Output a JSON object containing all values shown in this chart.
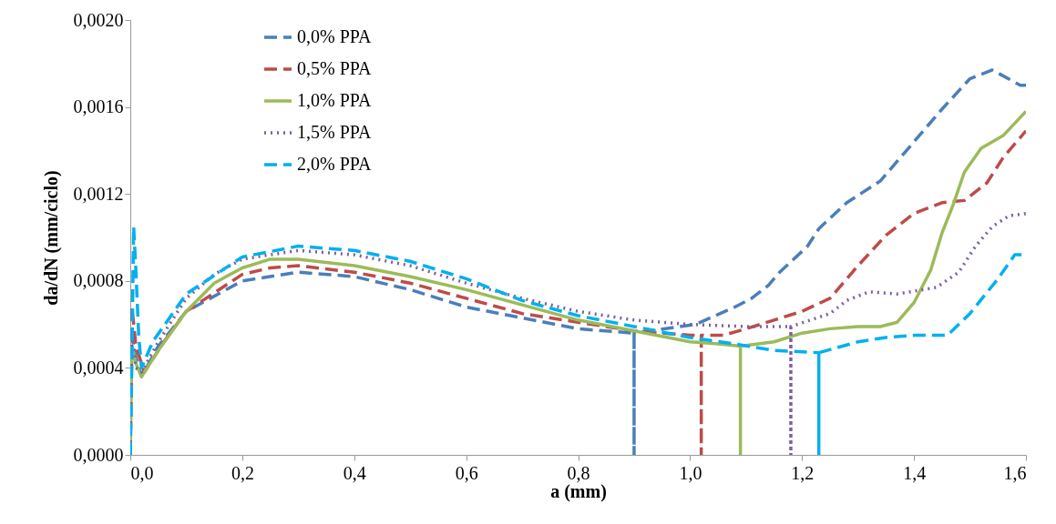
{
  "chart_data": {
    "type": "line",
    "xlabel": "a (mm)",
    "ylabel": "da/dN (mm/ciclo)",
    "xlim": [
      0,
      1.6
    ],
    "ylim": [
      0,
      0.002
    ],
    "xticks": [
      {
        "value": 0,
        "label": "0,0"
      },
      {
        "value": 0.2,
        "label": "0,2"
      },
      {
        "value": 0.4,
        "label": "0,4"
      },
      {
        "value": 0.6,
        "label": "0,6"
      },
      {
        "value": 0.8,
        "label": "0,8"
      },
      {
        "value": 1.0,
        "label": "1,0"
      },
      {
        "value": 1.2,
        "label": "1,2"
      },
      {
        "value": 1.4,
        "label": "1,4"
      },
      {
        "value": 1.6,
        "label": "1,6"
      }
    ],
    "yticks": [
      {
        "value": 0,
        "label": "0,0000"
      },
      {
        "value": 0.0004,
        "label": "0,0004"
      },
      {
        "value": 0.0008,
        "label": "0,0008"
      },
      {
        "value": 0.0012,
        "label": "0,0012"
      },
      {
        "value": 0.0016,
        "label": "0,0016"
      },
      {
        "value": 0.002,
        "label": "0,0020"
      }
    ],
    "legend": "top left",
    "marker": "none",
    "series": [
      {
        "name": "0,0% PPA",
        "color": "#4a7ebb",
        "line_style": "dashed",
        "x": [
          0,
          0.002,
          0.01,
          0.02,
          0.05,
          0.1,
          0.2,
          0.3,
          0.4,
          0.5,
          0.6,
          0.7,
          0.8,
          0.9,
          0.9,
          0.9,
          1.01,
          1.08,
          1.11,
          1.14,
          1.16,
          1.21,
          1.23,
          1.28,
          1.34,
          1.41,
          1.45,
          1.5,
          1.54,
          1.59,
          1.6
        ],
        "values": [
          0,
          0.00055,
          0.00045,
          0.00036,
          0.0005,
          0.00066,
          0.0008,
          0.00084,
          0.00082,
          0.00076,
          0.00068,
          0.00063,
          0.00058,
          0.00056,
          0,
          0.00056,
          0.0006,
          0.00068,
          0.00072,
          0.00078,
          0.00084,
          0.00096,
          0.00104,
          0.00116,
          0.00126,
          0.00147,
          0.00159,
          0.00173,
          0.00177,
          0.0017,
          0.0017
        ]
      },
      {
        "name": "0,5% PPA",
        "color": "#be4b48",
        "line_style": "dashed",
        "x": [
          0,
          0.003,
          0.01,
          0.025,
          0.06,
          0.1,
          0.2,
          0.25,
          0.3,
          0.4,
          0.5,
          0.6,
          0.7,
          0.8,
          0.9,
          1.0,
          1.02,
          1.02,
          1.02,
          1.06,
          1.1,
          1.15,
          1.2,
          1.25,
          1.3,
          1.35,
          1.4,
          1.45,
          1.49,
          1.53,
          1.56,
          1.6
        ],
        "values": [
          0,
          0.00068,
          0.0005,
          0.00038,
          0.00052,
          0.00066,
          0.00083,
          0.00086,
          0.00087,
          0.00084,
          0.00079,
          0.00072,
          0.00065,
          0.00061,
          0.00057,
          0.00055,
          0.00055,
          0,
          0.00055,
          0.00055,
          0.00058,
          0.00062,
          0.00066,
          0.00072,
          0.00087,
          0.00101,
          0.00111,
          0.00116,
          0.00117,
          0.00125,
          0.00137,
          0.00149
        ]
      },
      {
        "name": "1,0% PPA",
        "color": "#9bbb59",
        "line_style": "solid",
        "x": [
          0,
          0.003,
          0.01,
          0.02,
          0.05,
          0.1,
          0.15,
          0.2,
          0.25,
          0.3,
          0.4,
          0.5,
          0.6,
          0.7,
          0.8,
          0.9,
          1.0,
          1.05,
          1.09,
          1.09,
          1.09,
          1.15,
          1.2,
          1.25,
          1.3,
          1.34,
          1.37,
          1.4,
          1.43,
          1.45,
          1.47,
          1.49,
          1.52,
          1.56,
          1.6
        ],
        "values": [
          0,
          0.0005,
          0.00042,
          0.00036,
          0.00048,
          0.00066,
          0.00079,
          0.00086,
          0.0009,
          0.0009,
          0.00087,
          0.00082,
          0.00076,
          0.00069,
          0.00062,
          0.00057,
          0.00052,
          0.00051,
          0.0005,
          0,
          0.0005,
          0.00052,
          0.00056,
          0.00058,
          0.00059,
          0.00059,
          0.00061,
          0.0007,
          0.00085,
          0.00102,
          0.00115,
          0.0013,
          0.00141,
          0.00147,
          0.00158
        ]
      },
      {
        "name": "1,5% PPA",
        "color": "#7d5fa0",
        "line_style": "dotted",
        "x": [
          0,
          0.003,
          0.01,
          0.02,
          0.05,
          0.1,
          0.15,
          0.2,
          0.3,
          0.4,
          0.5,
          0.6,
          0.7,
          0.8,
          0.9,
          1.0,
          1.1,
          1.18,
          1.18,
          1.18,
          1.25,
          1.28,
          1.32,
          1.37,
          1.44,
          1.48,
          1.51,
          1.54,
          1.57,
          1.6
        ],
        "values": [
          0,
          0.00058,
          0.0004,
          0.00038,
          0.00052,
          0.00072,
          0.00083,
          0.0009,
          0.00094,
          0.00092,
          0.00087,
          0.00079,
          0.00072,
          0.00066,
          0.00062,
          0.0006,
          0.00059,
          0.00059,
          0,
          0.00059,
          0.00065,
          0.00071,
          0.00075,
          0.00074,
          0.00077,
          0.00084,
          0.00096,
          0.00105,
          0.0011,
          0.00111
        ]
      },
      {
        "name": "2,0% PPA",
        "color": "#00b0f0",
        "line_style": "dashed",
        "x": [
          0,
          0.003,
          0.006,
          0.01,
          0.015,
          0.02,
          0.04,
          0.1,
          0.2,
          0.3,
          0.4,
          0.5,
          0.6,
          0.7,
          0.8,
          0.9,
          1.0,
          1.08,
          1.15,
          1.23,
          1.23,
          1.23,
          1.3,
          1.35,
          1.4,
          1.46,
          1.5,
          1.55,
          1.58,
          1.6
        ],
        "values": [
          0,
          0.00045,
          0.00105,
          0.00085,
          0.00055,
          0.0004,
          0.00052,
          0.00074,
          0.00091,
          0.00096,
          0.00094,
          0.00089,
          0.00081,
          0.00071,
          0.00064,
          0.00059,
          0.00054,
          0.00051,
          0.00048,
          0.00047,
          0,
          0.00047,
          0.00052,
          0.00054,
          0.00055,
          0.00055,
          0.00065,
          0.00081,
          0.00092,
          0.00092
        ]
      }
    ]
  }
}
